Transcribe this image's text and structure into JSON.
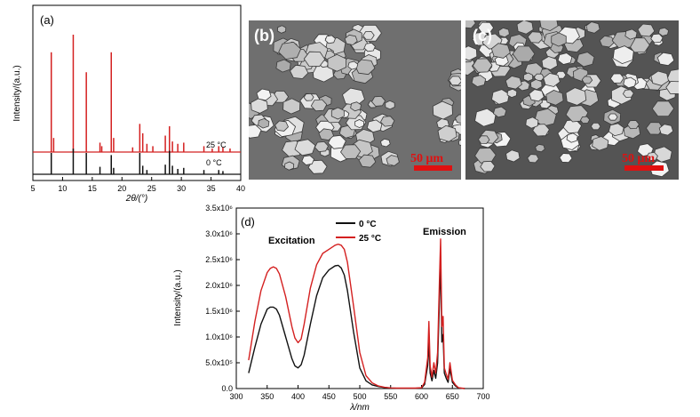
{
  "chart_data": [
    {
      "panel": "(a)",
      "type": "line",
      "xlabel": "2θ/(°)",
      "ylabel": "Intensity/(a.u.)",
      "xlim": [
        5,
        40
      ],
      "x_ticks": [
        "5",
        "10",
        "15",
        "20",
        "25",
        "30",
        "35",
        "40"
      ],
      "series": [
        {
          "name": "25 °C",
          "color": "#d42020",
          "peaks": [
            {
              "x": 8.1,
              "y": 0.85
            },
            {
              "x": 8.5,
              "y": 0.12
            },
            {
              "x": 11.8,
              "y": 1.0
            },
            {
              "x": 14.0,
              "y": 0.68
            },
            {
              "x": 16.3,
              "y": 0.08
            },
            {
              "x": 16.6,
              "y": 0.05
            },
            {
              "x": 18.2,
              "y": 0.85
            },
            {
              "x": 18.6,
              "y": 0.12
            },
            {
              "x": 21.8,
              "y": 0.04
            },
            {
              "x": 23.0,
              "y": 0.24
            },
            {
              "x": 23.5,
              "y": 0.16
            },
            {
              "x": 24.2,
              "y": 0.07
            },
            {
              "x": 25.2,
              "y": 0.05
            },
            {
              "x": 27.3,
              "y": 0.14
            },
            {
              "x": 28.0,
              "y": 0.22
            },
            {
              "x": 28.5,
              "y": 0.09
            },
            {
              "x": 29.4,
              "y": 0.07
            },
            {
              "x": 30.4,
              "y": 0.08
            },
            {
              "x": 33.8,
              "y": 0.05
            },
            {
              "x": 35.2,
              "y": 0.03
            },
            {
              "x": 36.3,
              "y": 0.05
            },
            {
              "x": 37.0,
              "y": 0.04
            },
            {
              "x": 38.2,
              "y": 0.03
            }
          ]
        },
        {
          "name": "0 °C",
          "color": "#111111",
          "peaks": [
            {
              "x": 8.1,
              "y": 0.2
            },
            {
              "x": 11.8,
              "y": 0.24
            },
            {
              "x": 14.0,
              "y": 0.2
            },
            {
              "x": 16.3,
              "y": 0.07
            },
            {
              "x": 18.2,
              "y": 0.18
            },
            {
              "x": 18.6,
              "y": 0.06
            },
            {
              "x": 23.0,
              "y": 0.2
            },
            {
              "x": 23.5,
              "y": 0.08
            },
            {
              "x": 24.2,
              "y": 0.04
            },
            {
              "x": 27.3,
              "y": 0.09
            },
            {
              "x": 28.0,
              "y": 0.22
            },
            {
              "x": 28.5,
              "y": 0.08
            },
            {
              "x": 29.4,
              "y": 0.05
            },
            {
              "x": 30.4,
              "y": 0.06
            },
            {
              "x": 33.8,
              "y": 0.04
            },
            {
              "x": 36.3,
              "y": 0.04
            },
            {
              "x": 37.0,
              "y": 0.03
            }
          ]
        }
      ],
      "annotations": [
        "25 °C",
        "0 °C"
      ]
    },
    {
      "panel": "(d)",
      "type": "line",
      "xlabel": "λ/nm",
      "ylabel": "Intensity/(a.u.)",
      "xlim": [
        300,
        700
      ],
      "ylim": [
        0,
        3500000
      ],
      "x_ticks": [
        "300",
        "350",
        "400",
        "450",
        "500",
        "550",
        "600",
        "650",
        "700"
      ],
      "y_ticks": [
        "0.0",
        "5.0x10⁵",
        "1.0x10⁶",
        "1.5x10⁶",
        "2.0x10⁶",
        "2.5x10⁶",
        "3.0x10⁶",
        "3.5x10⁶"
      ],
      "legend_position": "top-center",
      "annotations": [
        "Excitation",
        "Emission"
      ],
      "series": [
        {
          "name": "0 °C",
          "color": "#111111",
          "x": [
            320,
            330,
            340,
            350,
            355,
            360,
            365,
            370,
            380,
            390,
            395,
            400,
            405,
            410,
            420,
            430,
            440,
            450,
            460,
            465,
            470,
            475,
            480,
            490,
            500,
            510,
            520,
            530,
            540,
            550,
            560,
            570,
            580,
            590,
            600,
            605,
            610,
            612,
            614,
            617,
            620,
            623,
            626,
            629,
            631,
            633,
            635,
            637,
            640,
            643,
            646,
            650,
            655,
            660,
            670
          ],
          "y": [
            300000,
            800000,
            1250000,
            1540000,
            1580000,
            1580000,
            1540000,
            1420000,
            1000000,
            580000,
            440000,
            400000,
            460000,
            650000,
            1250000,
            1800000,
            2150000,
            2300000,
            2380000,
            2390000,
            2340000,
            2200000,
            1900000,
            1100000,
            400000,
            150000,
            70000,
            40000,
            20000,
            10000,
            5000,
            5000,
            5000,
            5000,
            10000,
            80000,
            450000,
            900000,
            300000,
            150000,
            350000,
            200000,
            500000,
            1700000,
            2500000,
            900000,
            1050000,
            300000,
            200000,
            120000,
            380000,
            120000,
            50000,
            10000,
            0
          ]
        },
        {
          "name": "25 °C",
          "color": "#d42020",
          "x": [
            320,
            330,
            340,
            350,
            355,
            360,
            365,
            370,
            380,
            390,
            395,
            400,
            405,
            410,
            420,
            430,
            440,
            450,
            460,
            465,
            470,
            475,
            480,
            490,
            500,
            510,
            520,
            530,
            540,
            550,
            560,
            570,
            580,
            590,
            600,
            605,
            610,
            612,
            614,
            617,
            620,
            623,
            626,
            629,
            631,
            633,
            635,
            637,
            640,
            643,
            646,
            650,
            655,
            660,
            670
          ],
          "y": [
            550000,
            1300000,
            1900000,
            2250000,
            2330000,
            2360000,
            2330000,
            2220000,
            1780000,
            1200000,
            980000,
            890000,
            960000,
            1250000,
            1950000,
            2400000,
            2620000,
            2700000,
            2780000,
            2800000,
            2780000,
            2700000,
            2450000,
            1600000,
            700000,
            250000,
            110000,
            50000,
            25000,
            12000,
            8000,
            8000,
            8000,
            8000,
            15000,
            120000,
            600000,
            1300000,
            450000,
            220000,
            500000,
            300000,
            700000,
            2100000,
            2900000,
            1200000,
            1400000,
            400000,
            280000,
            180000,
            500000,
            160000,
            70000,
            15000,
            0
          ]
        }
      ]
    }
  ],
  "sem_b": {
    "label": "(b)",
    "scale": "50 μm",
    "seed": 11
  },
  "sem_c": {
    "label": "(c)",
    "scale": "50 μm",
    "seed": 29
  }
}
